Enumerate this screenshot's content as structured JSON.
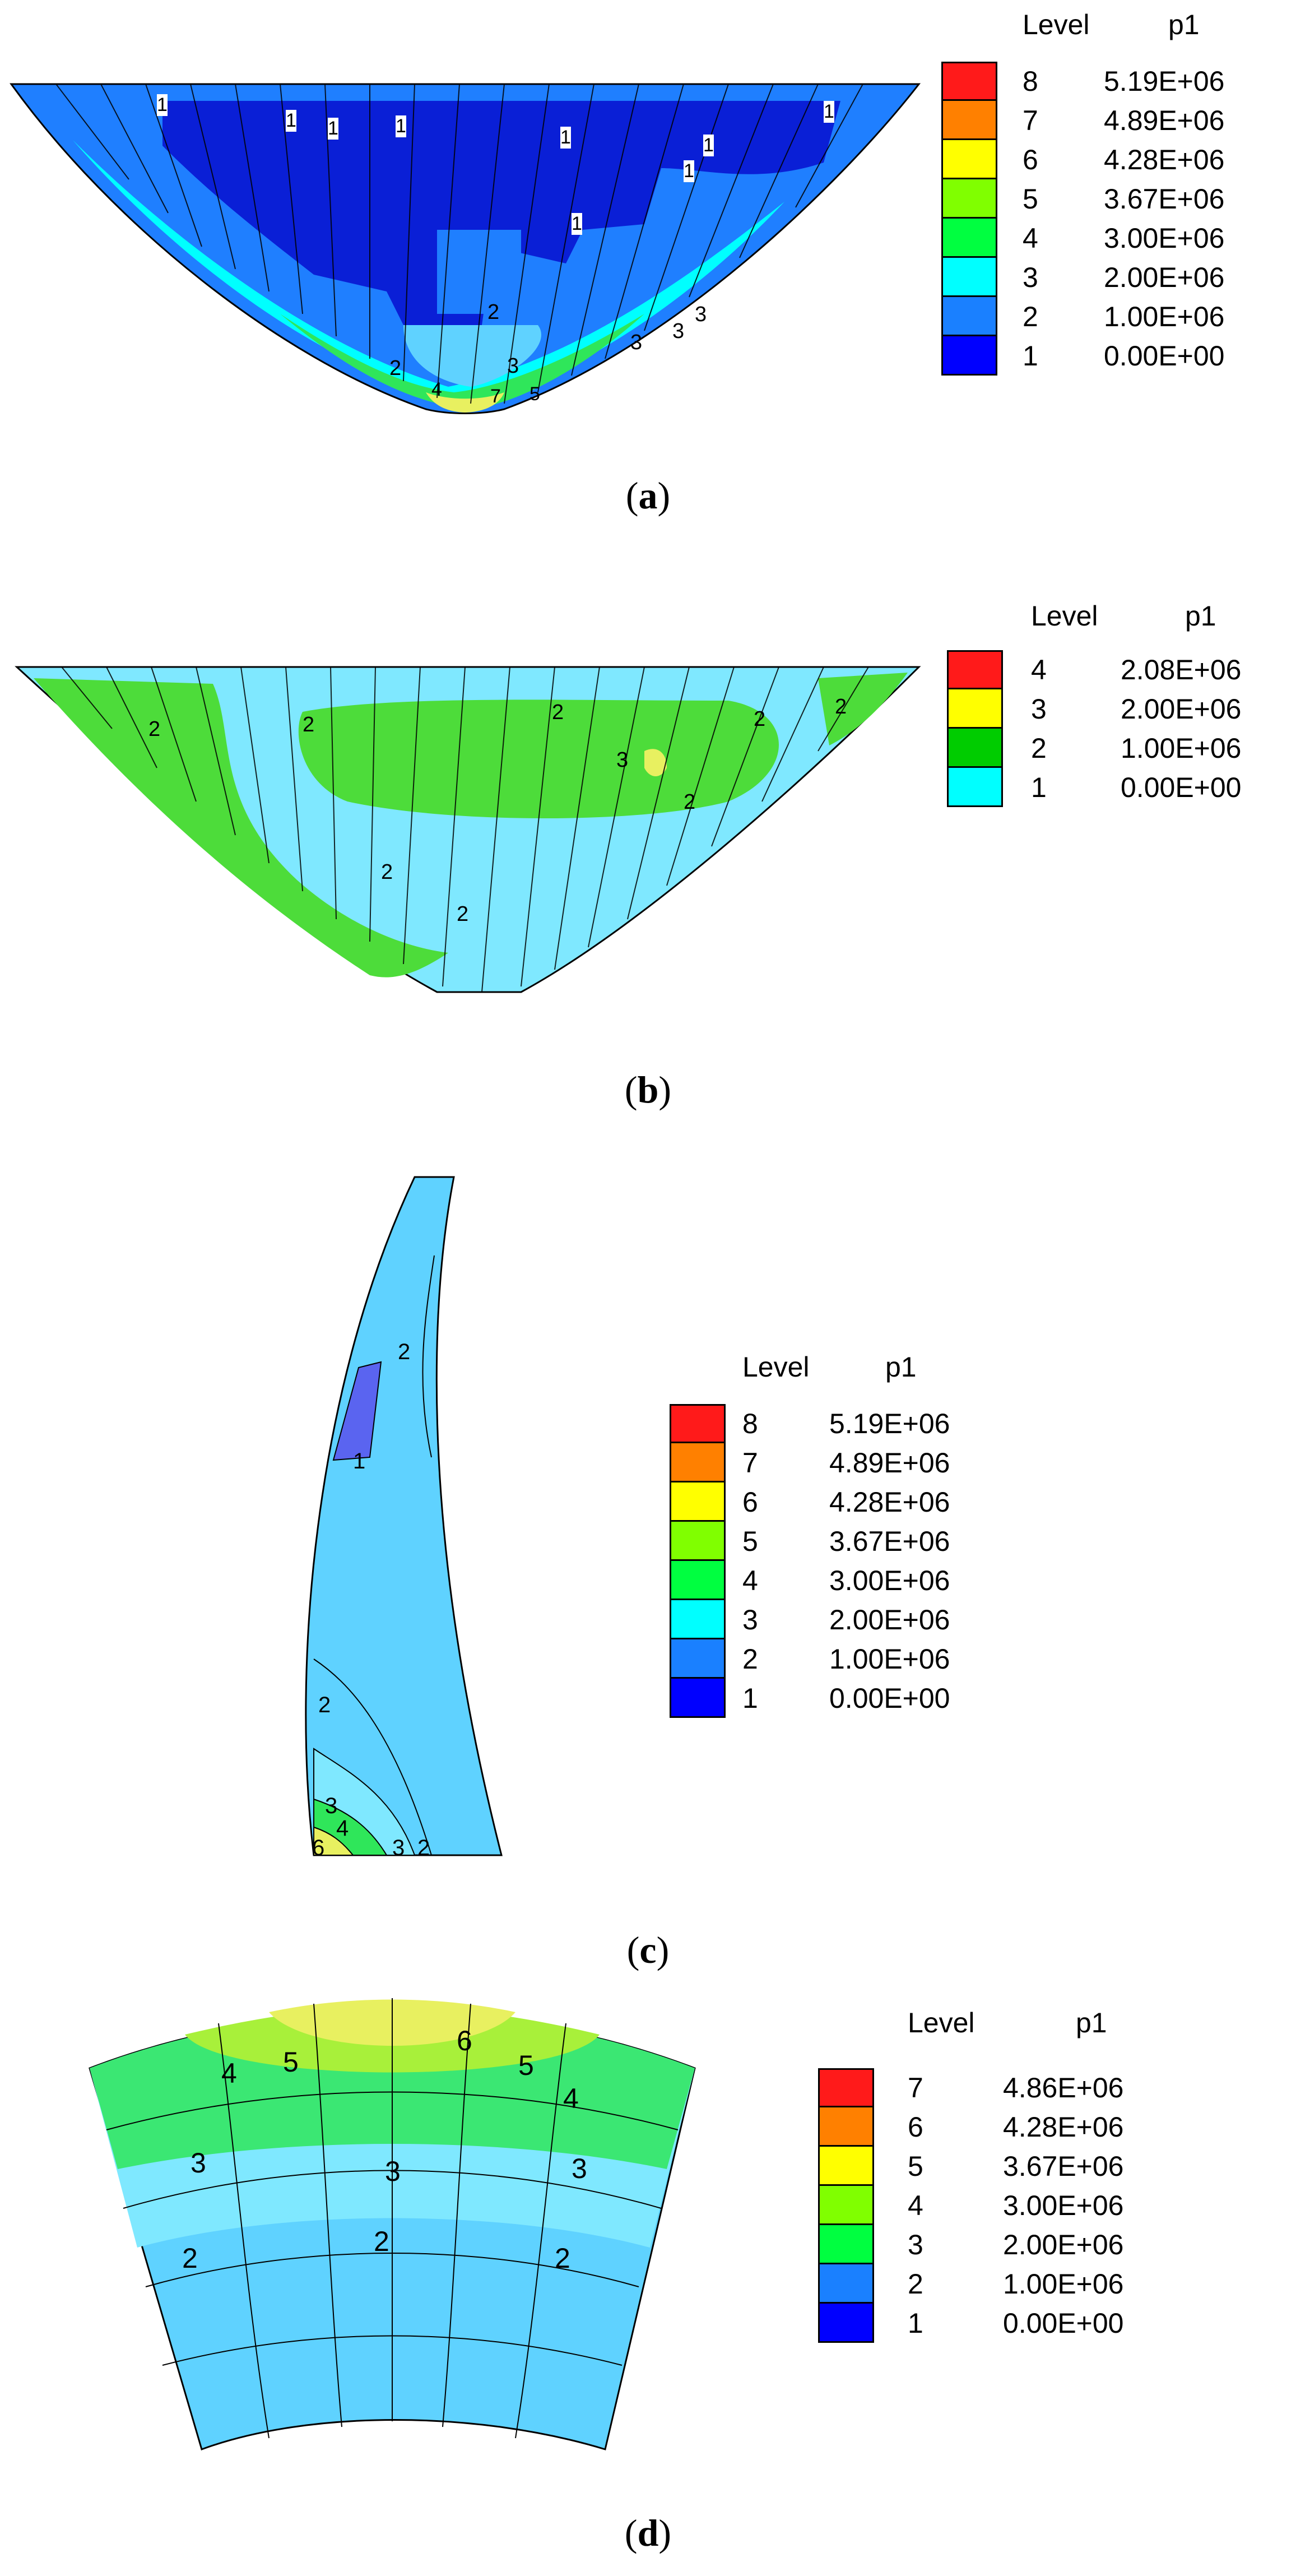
{
  "panels": [
    {
      "id": "a",
      "caption_open": "(",
      "caption_letter": "a",
      "caption_close": ")",
      "legend": {
        "level_header": "Level",
        "var_header": "p1",
        "levels": [
          {
            "level": "8",
            "value": "5.19E+06",
            "color": "#ff1a1a"
          },
          {
            "level": "7",
            "value": "4.89E+06",
            "color": "#ff8000"
          },
          {
            "level": "6",
            "value": "4.28E+06",
            "color": "#ffff00"
          },
          {
            "level": "5",
            "value": "3.67E+06",
            "color": "#80ff00"
          },
          {
            "level": "4",
            "value": "3.00E+06",
            "color": "#00ff40"
          },
          {
            "level": "3",
            "value": "2.00E+06",
            "color": "#00ffff"
          },
          {
            "level": "2",
            "value": "1.00E+06",
            "color": "#1a80ff"
          },
          {
            "level": "1",
            "value": "0.00E+00",
            "color": "#0000ff"
          }
        ]
      },
      "contour_labels": [
        "1",
        "1",
        "1",
        "1",
        "1",
        "1",
        "1",
        "1",
        "1",
        "1",
        "1",
        "2",
        "2",
        "3",
        "3",
        "3",
        "3",
        "4",
        "7",
        "5"
      ]
    },
    {
      "id": "b",
      "caption_open": "(",
      "caption_letter": "b",
      "caption_close": ")",
      "legend": {
        "level_header": "Level",
        "var_header": "p1",
        "levels": [
          {
            "level": "4",
            "value": "2.08E+06",
            "color": "#ff1a1a"
          },
          {
            "level": "3",
            "value": "2.00E+06",
            "color": "#ffff00"
          },
          {
            "level": "2",
            "value": "1.00E+06",
            "color": "#00cc00"
          },
          {
            "level": "1",
            "value": "0.00E+00",
            "color": "#00ffff"
          }
        ]
      },
      "contour_labels": [
        "2",
        "2",
        "2",
        "3",
        "2",
        "2",
        "2",
        "2",
        "2"
      ]
    },
    {
      "id": "c",
      "caption_open": "(",
      "caption_letter": "c",
      "caption_close": ")",
      "legend": {
        "level_header": "Level",
        "var_header": "p1",
        "levels": [
          {
            "level": "8",
            "value": "5.19E+06",
            "color": "#ff1a1a"
          },
          {
            "level": "7",
            "value": "4.89E+06",
            "color": "#ff8000"
          },
          {
            "level": "6",
            "value": "4.28E+06",
            "color": "#ffff00"
          },
          {
            "level": "5",
            "value": "3.67E+06",
            "color": "#80ff00"
          },
          {
            "level": "4",
            "value": "3.00E+06",
            "color": "#00ff40"
          },
          {
            "level": "3",
            "value": "2.00E+06",
            "color": "#00ffff"
          },
          {
            "level": "2",
            "value": "1.00E+06",
            "color": "#1a80ff"
          },
          {
            "level": "1",
            "value": "0.00E+00",
            "color": "#0000ff"
          }
        ]
      },
      "contour_labels": [
        "2",
        "1",
        "2",
        "3",
        "4",
        "6",
        "3",
        "2"
      ]
    },
    {
      "id": "d",
      "caption_open": "(",
      "caption_letter": "d",
      "caption_close": ")",
      "legend": {
        "level_header": "Level",
        "var_header": "p1",
        "levels": [
          {
            "level": "7",
            "value": "4.86E+06",
            "color": "#ff1a1a"
          },
          {
            "level": "6",
            "value": "4.28E+06",
            "color": "#ff8000"
          },
          {
            "level": "5",
            "value": "3.67E+06",
            "color": "#ffff00"
          },
          {
            "level": "4",
            "value": "3.00E+06",
            "color": "#80ff00"
          },
          {
            "level": "3",
            "value": "2.00E+06",
            "color": "#00ff40"
          },
          {
            "level": "2",
            "value": "1.00E+06",
            "color": "#1a80ff"
          },
          {
            "level": "1",
            "value": "0.00E+00",
            "color": "#0000ff"
          }
        ]
      },
      "contour_labels": [
        "6",
        "5",
        "4",
        "5",
        "4",
        "3",
        "3",
        "3",
        "2",
        "2",
        "2"
      ]
    }
  ],
  "colors": {
    "deep_blue": "#0a1fd6",
    "mid_blue": "#1f7fff",
    "cyan": "#5fd2ff",
    "light_cyan": "#7fe8ff",
    "green": "#4ddc3a",
    "bright_green": "#2fe65a",
    "yellow_green": "#a8f03a",
    "yellow": "#e8f060",
    "purple": "#5a64f0",
    "outline": "#000000"
  }
}
